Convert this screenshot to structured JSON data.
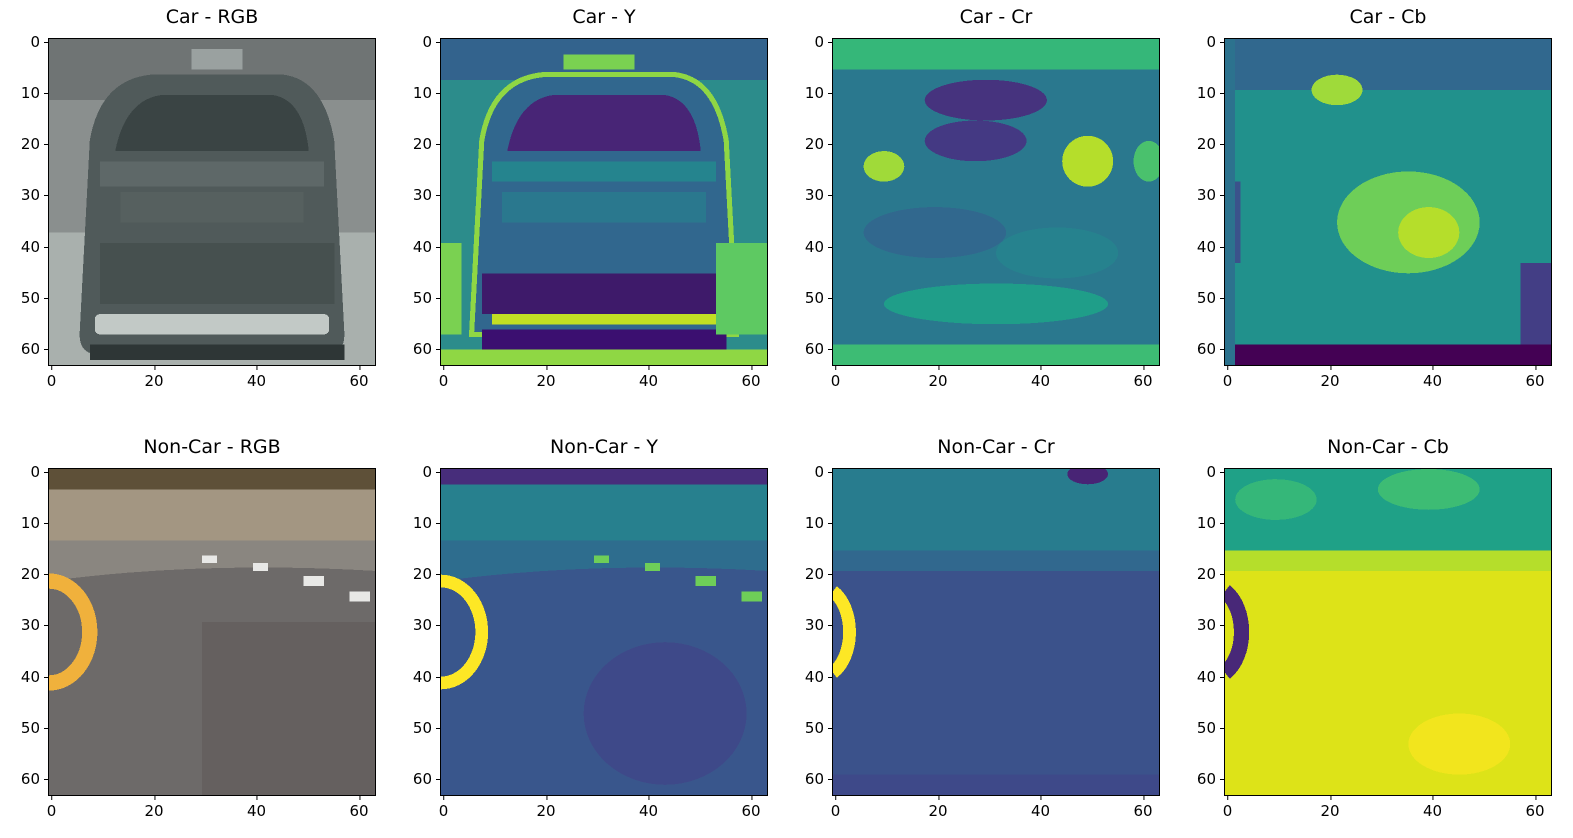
{
  "figure": {
    "panels": [
      {
        "title": "Car - RGB",
        "kind": "car-rgb"
      },
      {
        "title": "Car - Y",
        "kind": "car-y"
      },
      {
        "title": "Car - Cr",
        "kind": "car-cr"
      },
      {
        "title": "Car - Cb",
        "kind": "car-cb"
      },
      {
        "title": "Non-Car - RGB",
        "kind": "noncar-rgb"
      },
      {
        "title": "Non-Car - Y",
        "kind": "noncar-y"
      },
      {
        "title": "Non-Car - Cr",
        "kind": "noncar-cr"
      },
      {
        "title": "Non-Car - Cb",
        "kind": "noncar-cb"
      }
    ],
    "y_ticks": [
      "0",
      "10",
      "20",
      "30",
      "40",
      "50",
      "60"
    ],
    "x_ticks": [
      "0",
      "20",
      "40",
      "60"
    ],
    "y_tick_values": [
      0,
      10,
      20,
      30,
      40,
      50,
      60
    ],
    "x_tick_values": [
      0,
      20,
      40,
      60
    ],
    "axis_extent": [
      -0.5,
      63.5
    ]
  }
}
